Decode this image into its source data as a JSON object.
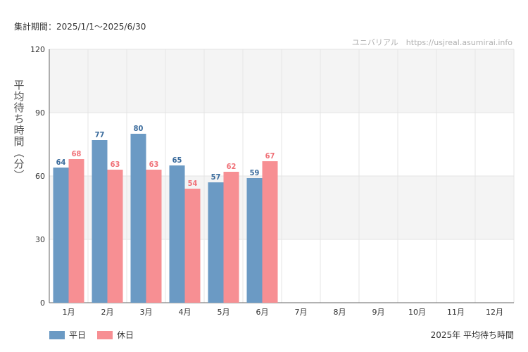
{
  "header": {
    "period_label": "集計期間：2025/1/1～2025/6/30",
    "site_label": "ユニバリアル　https://usjreal.asumirai.info"
  },
  "colors": {
    "weekday": "#6b9ac4",
    "holiday": "#f78f93",
    "weekday_text": "#3a6b9c",
    "holiday_text": "#f07077",
    "band": "#f4f4f4"
  },
  "chart_data": {
    "type": "bar",
    "ylabel": "平均待ち時間（分）",
    "caption": "2025年 平均待ち時間",
    "ylim": [
      0,
      120
    ],
    "yticks": [
      0,
      30,
      60,
      90,
      120
    ],
    "grid": true,
    "legend_position": "bottom-left",
    "categories": [
      "1月",
      "2月",
      "3月",
      "4月",
      "5月",
      "6月",
      "7月",
      "8月",
      "9月",
      "10月",
      "11月",
      "12月"
    ],
    "series": [
      {
        "name": "平日",
        "values": [
          64,
          77,
          80,
          65,
          57,
          59,
          null,
          null,
          null,
          null,
          null,
          null
        ]
      },
      {
        "name": "休日",
        "values": [
          68,
          63,
          63,
          54,
          62,
          67,
          null,
          null,
          null,
          null,
          null,
          null
        ]
      }
    ]
  }
}
